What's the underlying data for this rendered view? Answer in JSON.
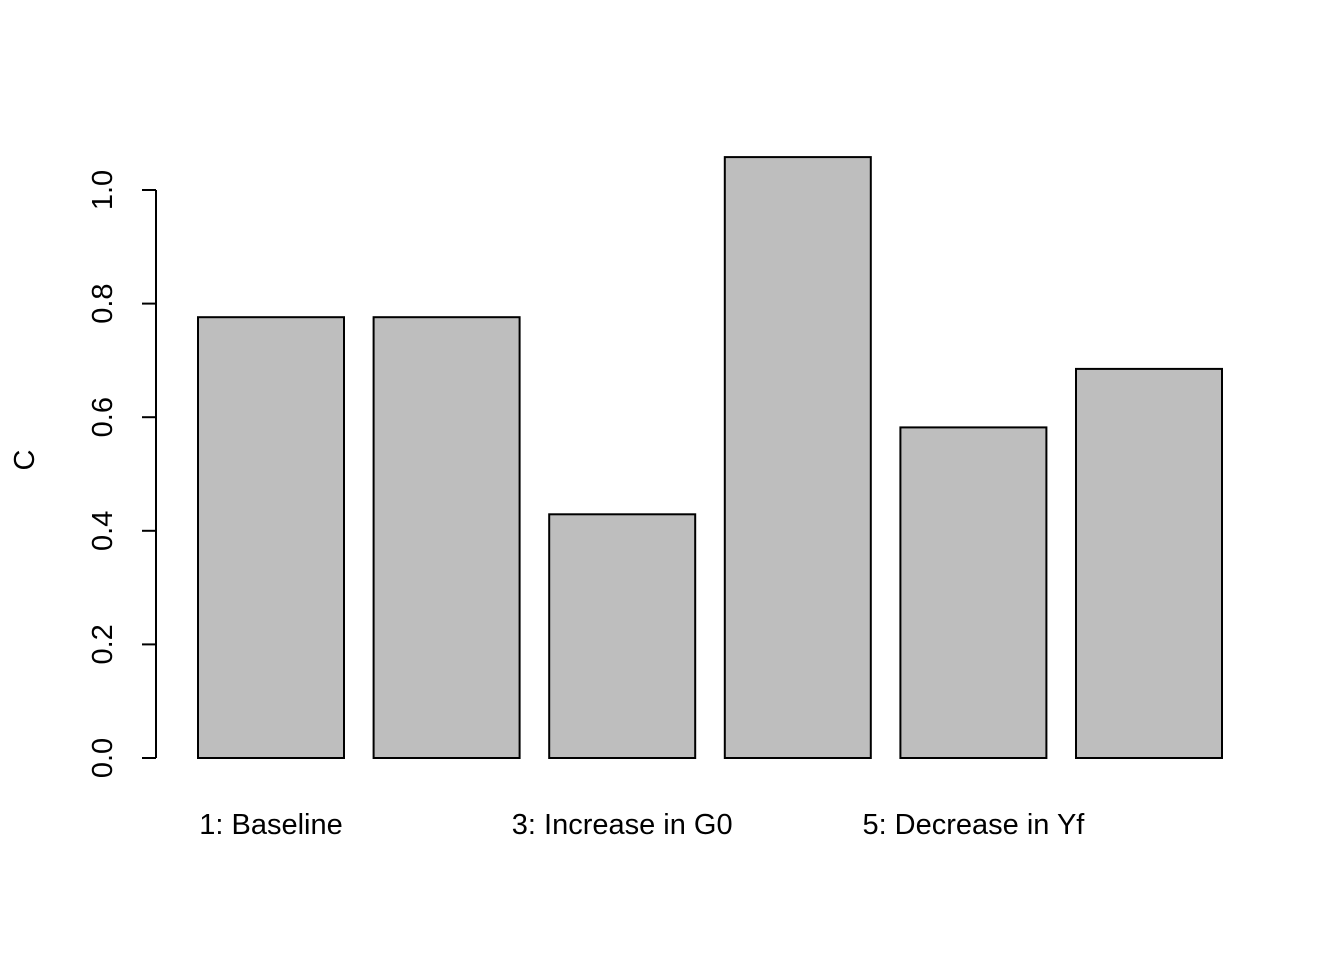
{
  "chart_data": {
    "type": "bar",
    "categories": [
      "1: Baseline",
      "",
      "3: Increase in G0",
      "",
      "5: Decrease in Yf",
      ""
    ],
    "values": [
      0.776,
      0.776,
      0.429,
      1.058,
      0.582,
      0.685
    ],
    "title": "",
    "xlabel": "",
    "ylabel": "C",
    "ylim": [
      0,
      1.0
    ],
    "yticks": [
      "0.0",
      "0.2",
      "0.4",
      "0.6",
      "0.8",
      "1.0"
    ],
    "grid": false,
    "legend": "none",
    "colors": {
      "bar_fill": "#bebebe",
      "bar_stroke": "#000000",
      "axis": "#000000"
    }
  }
}
